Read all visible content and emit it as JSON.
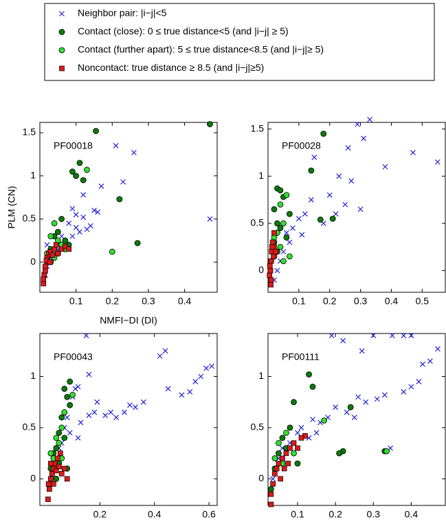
{
  "chart_data": [
    {
      "type": "scatter",
      "annotation": "PF00018",
      "xlabel": "NMFI−DI (DI)",
      "ylabel": "PLM (CN)",
      "legend": "top",
      "xlim": [
        0,
        0.49
      ],
      "ylim": [
        -0.35,
        1.62
      ],
      "xticks": [
        0.1,
        0.2,
        0.3,
        0.4
      ],
      "yticks": [
        0,
        0.5,
        1,
        1.5
      ],
      "series": [
        {
          "name": "Neighbor  pair: |i−j|<5",
          "color": "#1f1fd8",
          "marker": "x",
          "x": [
            0.47,
            0.21,
            0.26,
            0.23,
            0.17,
            0.15,
            0.12,
            0.14,
            0.13,
            0.1,
            0.08,
            0.09,
            0.11,
            0.06,
            0.07,
            0.05,
            0.04,
            0.03,
            0.02,
            0.015,
            0.02,
            0.12,
            0.1,
            0.16,
            0.09
          ],
          "values": [
            0.5,
            1.35,
            1.27,
            0.93,
            0.88,
            0.6,
            0.78,
            0.42,
            0.38,
            0.55,
            0.45,
            0.62,
            0.35,
            0.3,
            0.2,
            0.15,
            0.1,
            0.05,
            -0.05,
            -0.15,
            0.2,
            0.52,
            0.4,
            0.58,
            0.3
          ]
        },
        {
          "name": "Contact (close): 0 ≤ true distance<5 (and |i−j| ≥ 5)",
          "color": "#0b7a0b",
          "marker": "o",
          "x": [
            0.155,
            0.47,
            0.11,
            0.09,
            0.1,
            0.12,
            0.22,
            0.27,
            0.06,
            0.05,
            0.04,
            0.07,
            0.03,
            0.08,
            0.05
          ],
          "values": [
            1.52,
            1.6,
            1.15,
            1.05,
            1.0,
            0.95,
            0.73,
            0.22,
            0.5,
            0.35,
            0.3,
            0.25,
            0.15,
            0.2,
            0.1
          ]
        },
        {
          "name": "Contact (further apart): 5 ≤ true distance<8.5 (and |i−j|≥ 5)",
          "color": "#33dd33",
          "marker": "o",
          "x": [
            0.13,
            0.2,
            0.03,
            0.04,
            0.06,
            0.02,
            0.05,
            0.07,
            0.03,
            0.04
          ],
          "values": [
            1.07,
            0.12,
            0.3,
            0.45,
            0.2,
            0.1,
            0.25,
            0.15,
            0.0,
            0.05
          ]
        },
        {
          "name": "Noncontact:  true distance  ≥  8.5 (and |i−j|≥5)",
          "color": "#dd1a1a",
          "marker": "s",
          "x": [
            0.01,
            0.012,
            0.015,
            0.02,
            0.02,
            0.025,
            0.03,
            0.035,
            0.04,
            0.05,
            0.06,
            0.07,
            0.08,
            0.015,
            0.018,
            0.028,
            0.045,
            0.01
          ],
          "values": [
            -0.25,
            -0.15,
            -0.1,
            0.0,
            0.05,
            0.1,
            0.12,
            0.08,
            0.15,
            0.1,
            0.15,
            0.18,
            0.15,
            -0.05,
            0.02,
            0.0,
            0.2,
            -0.2
          ]
        }
      ]
    },
    {
      "type": "scatter",
      "annotation": "PF00028",
      "xlim": [
        0,
        0.575
      ],
      "ylim": [
        -0.23,
        1.57
      ],
      "xticks": [
        0.1,
        0.2,
        0.3,
        0.4,
        0.5
      ],
      "yticks": [
        0,
        0.5,
        1,
        1.5
      ],
      "series": [
        {
          "color": "#1f1fd8",
          "marker": "x",
          "x": [
            0.55,
            0.47,
            0.38,
            0.33,
            0.31,
            0.29,
            0.26,
            0.23,
            0.27,
            0.2,
            0.25,
            0.22,
            0.18,
            0.15,
            0.14,
            0.12,
            0.1,
            0.08,
            0.06,
            0.07,
            0.05,
            0.04,
            0.03,
            0.02,
            0.3,
            0.11
          ],
          "values": [
            1.15,
            1.25,
            1.1,
            1.6,
            1.4,
            1.55,
            1.3,
            1.0,
            0.95,
            0.8,
            0.7,
            0.6,
            0.5,
            1.2,
            0.75,
            0.6,
            0.55,
            0.45,
            0.4,
            0.3,
            0.2,
            0.1,
            0.0,
            -0.1,
            0.65,
            0.38
          ]
        },
        {
          "color": "#0b7a0b",
          "marker": "o",
          "x": [
            0.18,
            0.14,
            0.03,
            0.04,
            0.05,
            0.07,
            0.21,
            0.17,
            0.02,
            0.03,
            0.04,
            0.06,
            0.02,
            0.03,
            0.01
          ],
          "values": [
            1.45,
            1.06,
            0.87,
            0.85,
            0.78,
            0.6,
            0.55,
            0.54,
            0.65,
            0.5,
            0.45,
            0.35,
            0.3,
            0.2,
            0.1
          ]
        },
        {
          "color": "#33dd33",
          "marker": "o",
          "x": [
            0.06,
            0.04,
            0.05,
            0.03,
            0.02,
            0.07,
            0.04,
            0.02,
            0.05
          ],
          "values": [
            0.8,
            0.7,
            0.5,
            0.4,
            0.35,
            0.15,
            0.25,
            0.15,
            0.1
          ]
        },
        {
          "color": "#dd1a1a",
          "marker": "s",
          "x": [
            0.005,
            0.008,
            0.01,
            0.012,
            0.015,
            0.02,
            0.01,
            0.006,
            0.018,
            0.013,
            0.009,
            0.02,
            0.025
          ],
          "values": [
            -0.05,
            0.0,
            0.1,
            0.2,
            0.3,
            0.25,
            -0.1,
            0.05,
            0.15,
            0.25,
            -0.15,
            0.4,
            0.2
          ]
        }
      ]
    },
    {
      "type": "scatter",
      "annotation": "PF00043",
      "xlim": [
        -0.02,
        0.63
      ],
      "ylim": [
        -0.26,
        1.42
      ],
      "xticks": [
        0.2,
        0.4,
        0.6
      ],
      "yticks": [
        0,
        0.5,
        1
      ],
      "series": [
        {
          "color": "#1f1fd8",
          "marker": "x",
          "x": [
            0.61,
            0.59,
            0.57,
            0.55,
            0.53,
            0.5,
            0.45,
            0.44,
            0.42,
            0.36,
            0.33,
            0.31,
            0.29,
            0.26,
            0.24,
            0.22,
            0.18,
            0.16,
            0.15,
            0.16,
            0.12,
            0.11,
            0.1,
            0.08,
            0.09,
            0.07,
            0.06,
            0.05,
            0.04,
            0.03,
            0.02,
            0.19,
            0.13,
            0.12
          ],
          "values": [
            1.1,
            1.08,
            1.0,
            0.95,
            0.85,
            0.82,
            0.88,
            1.25,
            1.2,
            0.75,
            0.7,
            0.72,
            0.65,
            0.6,
            0.65,
            0.62,
            0.65,
            0.62,
            1.4,
            1.02,
            0.9,
            0.88,
            0.8,
            0.6,
            0.45,
            0.5,
            0.35,
            0.3,
            0.2,
            0.1,
            0.0,
            0.75,
            0.55,
            0.4
          ]
        },
        {
          "color": "#0b7a0b",
          "marker": "o",
          "x": [
            0.09,
            0.08,
            0.07,
            0.09,
            0.06,
            0.05,
            0.07,
            0.04,
            0.03,
            0.05,
            0.08,
            0.02,
            0.04
          ],
          "values": [
            0.95,
            0.8,
            0.88,
            0.72,
            0.6,
            0.45,
            0.4,
            0.3,
            0.25,
            0.15,
            0.1,
            0.1,
            0.0
          ]
        },
        {
          "color": "#33dd33",
          "marker": "o",
          "x": [
            0.1,
            0.07,
            0.06,
            0.05,
            0.04,
            0.03,
            0.06,
            0.02
          ],
          "values": [
            0.82,
            0.65,
            0.5,
            0.35,
            0.4,
            0.2,
            0.2,
            0.25
          ]
        },
        {
          "color": "#dd1a1a",
          "marker": "s",
          "x": [
            0.01,
            0.015,
            0.02,
            0.025,
            0.03,
            0.035,
            0.04,
            0.05,
            0.06,
            0.07,
            0.08,
            0.045,
            0.02,
            0.012,
            0.03,
            0.055
          ],
          "values": [
            -0.2,
            -0.1,
            0.0,
            0.05,
            0.1,
            0.15,
            0.08,
            0.12,
            0.05,
            0.1,
            0.0,
            0.2,
            0.15,
            -0.05,
            -0.05,
            0.25
          ]
        }
      ]
    },
    {
      "type": "scatter",
      "annotation": "PF00111",
      "xlim": [
        0.022,
        0.49
      ],
      "ylim": [
        -0.26,
        1.42
      ],
      "xticks": [
        0.1,
        0.2,
        0.3,
        0.4
      ],
      "yticks": [
        0,
        0.5,
        1
      ],
      "series": [
        {
          "color": "#1f1fd8",
          "marker": "x",
          "x": [
            0.47,
            0.45,
            0.43,
            0.4,
            0.38,
            0.35,
            0.3,
            0.27,
            0.22,
            0.19,
            0.42,
            0.4,
            0.38,
            0.33,
            0.31,
            0.28,
            0.26,
            0.23,
            0.2,
            0.18,
            0.16,
            0.15,
            0.14,
            0.13,
            0.11,
            0.1,
            0.08,
            0.06,
            0.05,
            0.04,
            0.035,
            0.345,
            0.25
          ],
          "values": [
            1.27,
            1.15,
            1.12,
            1.4,
            1.4,
            1.4,
            1.4,
            1.25,
            1.35,
            1.4,
            0.95,
            0.9,
            0.85,
            0.82,
            0.78,
            0.75,
            0.8,
            0.65,
            0.7,
            0.6,
            0.55,
            0.45,
            0.58,
            0.4,
            0.5,
            0.45,
            0.35,
            0.3,
            0.2,
            0.1,
            0.0,
            0.3,
            0.6
          ]
        },
        {
          "color": "#0b7a0b",
          "marker": "o",
          "x": [
            0.13,
            0.14,
            0.24,
            0.22,
            0.21,
            0.33,
            0.09,
            0.08,
            0.06,
            0.07,
            0.05,
            0.04,
            0.1,
            0.03
          ],
          "values": [
            1.02,
            0.9,
            0.7,
            0.27,
            0.25,
            0.27,
            0.75,
            0.5,
            0.4,
            0.3,
            0.25,
            0.1,
            0.15,
            -0.1
          ]
        },
        {
          "color": "#33dd33",
          "marker": "o",
          "x": [
            0.17,
            0.335,
            0.07,
            0.05,
            0.06,
            0.04,
            0.09
          ],
          "values": [
            0.57,
            0.27,
            0.45,
            0.35,
            0.15,
            0.2,
            0.25
          ]
        },
        {
          "color": "#dd1a1a",
          "marker": "s",
          "x": [
            0.12,
            0.03,
            0.035,
            0.04,
            0.045,
            0.05,
            0.06,
            0.07,
            0.08,
            0.09,
            0.1,
            0.055,
            0.065,
            0.03,
            0.11,
            0.075
          ],
          "values": [
            0.42,
            -0.15,
            -0.05,
            0.05,
            0.1,
            0.15,
            0.2,
            0.25,
            0.3,
            0.35,
            0.3,
            0.0,
            0.1,
            -0.25,
            0.4,
            0.15
          ]
        }
      ]
    }
  ]
}
